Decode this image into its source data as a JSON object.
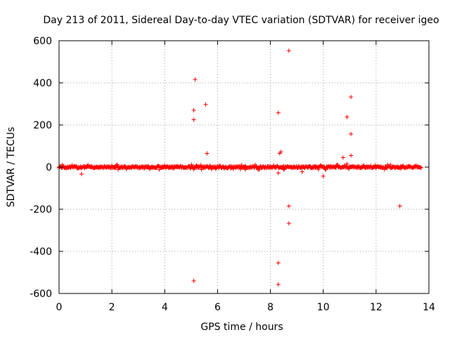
{
  "chart_data": {
    "type": "scatter",
    "title": "Day 213 of 2011, Sidereal Day-to-day VTEC variation (SDTVAR) for receiver igeo",
    "xlabel": "GPS time / hours",
    "ylabel": "SDTVAR / TECUs",
    "xlim": [
      0,
      14
    ],
    "ylim": [
      -600,
      600
    ],
    "xticks": [
      0,
      2,
      4,
      6,
      8,
      10,
      12,
      14
    ],
    "yticks": [
      -600,
      -400,
      -200,
      0,
      200,
      400,
      600
    ],
    "xtick_labels": [
      "0",
      "2",
      "4",
      "6",
      "8",
      "10",
      "12",
      "14"
    ],
    "ytick_labels": [
      "-600",
      "-400",
      "-200",
      "0",
      "200",
      "400",
      "600"
    ],
    "grid": true,
    "marker": "plus",
    "color": "#ff0000",
    "band": {
      "x_range": [
        0.0,
        13.7
      ],
      "y_range": [
        -12,
        12
      ],
      "description": "dense cluster of points near zero"
    },
    "series": [
      {
        "name": "SDTVAR",
        "points": [
          [
            0.85,
            -33
          ],
          [
            2.2,
            12
          ],
          [
            4.0,
            8
          ],
          [
            5.1,
            -540
          ],
          [
            5.1,
            225
          ],
          [
            5.1,
            270
          ],
          [
            5.15,
            416
          ],
          [
            5.55,
            297
          ],
          [
            5.6,
            65
          ],
          [
            6.9,
            10
          ],
          [
            7.05,
            -12
          ],
          [
            8.3,
            -557
          ],
          [
            8.3,
            -455
          ],
          [
            8.3,
            258
          ],
          [
            8.35,
            65
          ],
          [
            8.4,
            72
          ],
          [
            8.3,
            -28
          ],
          [
            8.5,
            -12
          ],
          [
            8.7,
            553
          ],
          [
            8.7,
            -185
          ],
          [
            8.7,
            -267
          ],
          [
            9.2,
            -22
          ],
          [
            10.0,
            -43
          ],
          [
            10.75,
            45
          ],
          [
            10.9,
            238
          ],
          [
            10.9,
            15
          ],
          [
            11.05,
            333
          ],
          [
            11.05,
            157
          ],
          [
            11.05,
            55
          ],
          [
            12.9,
            -185
          ]
        ]
      }
    ]
  }
}
